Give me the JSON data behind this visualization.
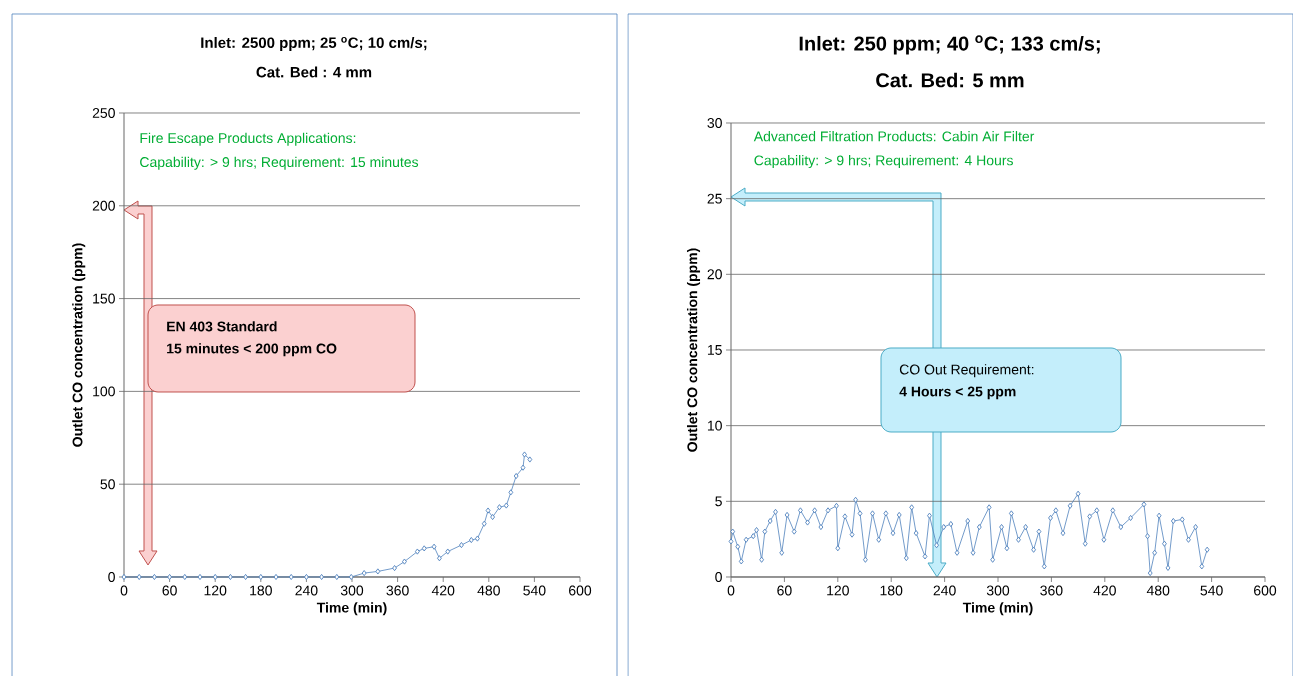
{
  "chart_data": [
    {
      "type": "line",
      "title": "Inlet: 2500 ppm; 25 $^{o}$C; 10 cm/s;",
      "subtitle": "Cat. Bed : 4 mm",
      "xlabel": "Time (min)",
      "ylabel": "Outlet CO concentration (ppm)",
      "annotations": [
        "Fire Escape Products Applications:",
        "Capability: > 9 hrs; Requirement: 15 minutes",
        "EN 403 Standard",
        "15 minutes < 200 ppm CO"
      ],
      "xlim": [
        0,
        600
      ],
      "xticks": [
        0,
        60,
        120,
        180,
        240,
        300,
        360,
        420,
        480,
        540,
        600
      ],
      "ylim": [
        0,
        250
      ],
      "yticks": [
        0,
        50,
        100,
        150,
        200,
        250
      ],
      "grid": "y",
      "marker": "diamond",
      "line_style": "solid",
      "series": [
        {
          "color": "#4f81bd",
          "x": [
            0,
            20,
            40,
            60,
            80,
            100,
            120,
            140,
            160,
            180,
            200,
            220,
            240,
            260,
            280,
            299,
            316,
            334,
            356,
            369,
            386,
            395,
            408,
            415,
            426,
            444,
            457,
            465,
            474,
            479,
            485,
            494,
            503,
            509,
            516,
            525,
            527,
            534
          ],
          "values": [
            0,
            0,
            0,
            0,
            0,
            0,
            0,
            0,
            0,
            0,
            0,
            0,
            0,
            0,
            0,
            0,
            2.1,
            3,
            4.8,
            8.3,
            13.7,
            15.4,
            16.3,
            10.1,
            13.7,
            17.2,
            19.9,
            20.7,
            28.7,
            35.8,
            32.3,
            37.6,
            38.5,
            45.6,
            54.4,
            58.9,
            66,
            63.3
          ]
        }
      ]
    },
    {
      "type": "line",
      "title": "Inlet: 250 ppm; 40 $^{o}$C; 133 cm/s;",
      "subtitle": "Cat. Bed: 5 mm",
      "xlabel": "Time (min)",
      "ylabel": "Outlet CO concentration (ppm)",
      "annotations": [
        "Advanced Filtration Products: Cabin Air Filter",
        "Capability: > 9 hrs; Requirement: 4 Hours",
        "CO Out Requirement:",
        "4 Hours < 25 ppm"
      ],
      "xlim": [
        0,
        600
      ],
      "xticks": [
        0,
        60,
        120,
        180,
        240,
        300,
        360,
        420,
        480,
        540,
        600
      ],
      "ylim": [
        0,
        30
      ],
      "yticks": [
        0,
        5,
        10,
        15,
        20,
        25,
        30
      ],
      "grid": "y",
      "marker": "diamond",
      "line_style": "solid",
      "series": [
        {
          "color": "#4f81bd",
          "x": [
            0,
            1.9,
            7.6,
            11.5,
            17,
            25,
            28.7,
            34.4,
            38,
            44,
            50,
            57,
            63,
            71,
            78,
            86,
            94,
            101,
            109,
            118.5,
            120,
            128,
            136,
            140,
            145,
            151,
            159,
            166,
            174,
            182,
            189,
            197,
            203,
            208,
            218,
            223,
            231,
            239,
            247,
            254,
            266,
            272,
            279,
            290,
            294,
            304,
            310,
            315,
            323,
            331,
            340,
            346,
            352,
            359,
            365,
            373,
            381,
            390,
            398,
            403,
            411,
            419,
            429,
            438,
            449,
            464,
            468,
            471,
            476,
            481,
            487,
            491,
            497,
            507,
            514,
            522,
            529,
            535
          ],
          "values": [
            2.35,
            3,
            2,
            1.03,
            2.46,
            2.7,
            3.1,
            1.14,
            3,
            3.7,
            4.3,
            1.6,
            4.1,
            3,
            4.4,
            3.6,
            4.4,
            3.3,
            4.4,
            4.7,
            1.9,
            4,
            2.8,
            5.1,
            4.2,
            1.14,
            4.2,
            2.46,
            4.2,
            2.9,
            4.1,
            1.25,
            4.6,
            2.9,
            1.36,
            4.05,
            2.1,
            3.3,
            3.5,
            1.6,
            3.7,
            1.6,
            3.3,
            4.6,
            1.14,
            3.3,
            1.9,
            4.2,
            2.46,
            3.3,
            1.8,
            3,
            0.7,
            3.9,
            4.4,
            2.9,
            4.7,
            5.5,
            2.2,
            4,
            4.4,
            2.46,
            4.4,
            3.3,
            3.9,
            4.8,
            2.7,
            0.26,
            1.6,
            4.05,
            2.2,
            0.6,
            3.7,
            3.8,
            2.46,
            3.3,
            0.7,
            1.8
          ]
        }
      ]
    }
  ]
}
